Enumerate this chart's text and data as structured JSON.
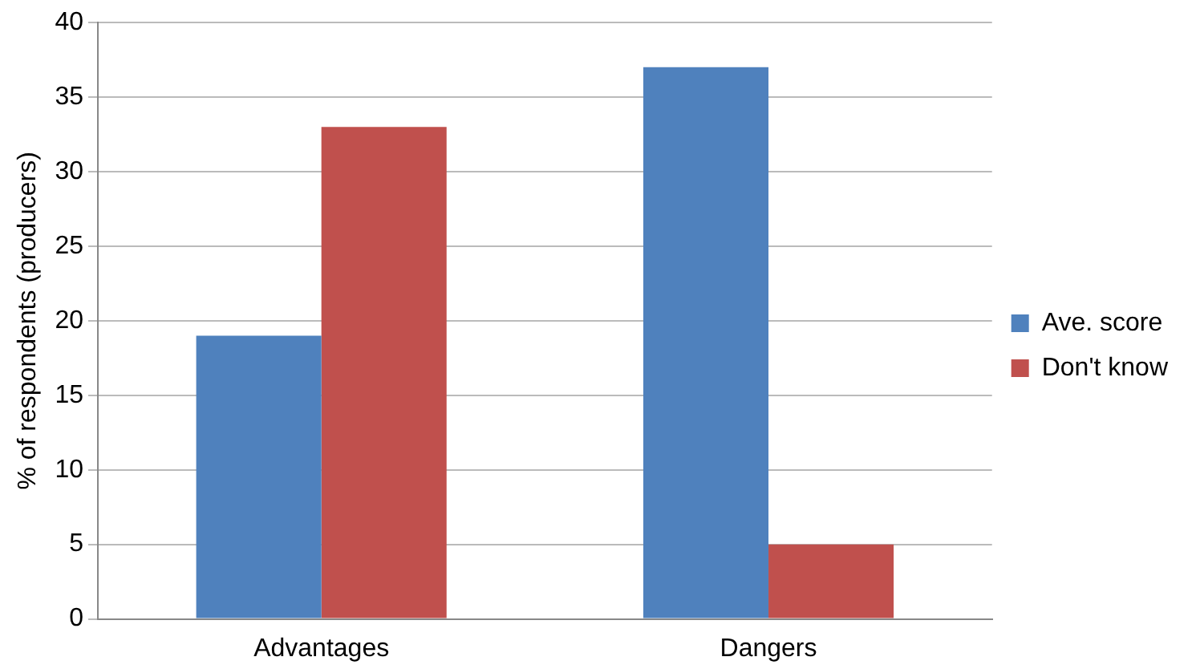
{
  "chart_data": {
    "type": "bar",
    "ylabel": "% of respondents (producers)",
    "categories": [
      "Advantages",
      "Dangers"
    ],
    "series": [
      {
        "name": "Ave. score",
        "color": "#4f81bd",
        "values": [
          19,
          37
        ]
      },
      {
        "name": "Don't know",
        "color": "#c0504d",
        "values": [
          33,
          5
        ]
      }
    ],
    "ylim": [
      0,
      40
    ],
    "yticks": [
      0,
      5,
      10,
      15,
      20,
      25,
      30,
      35,
      40
    ],
    "grid": "y",
    "legend": "right"
  }
}
